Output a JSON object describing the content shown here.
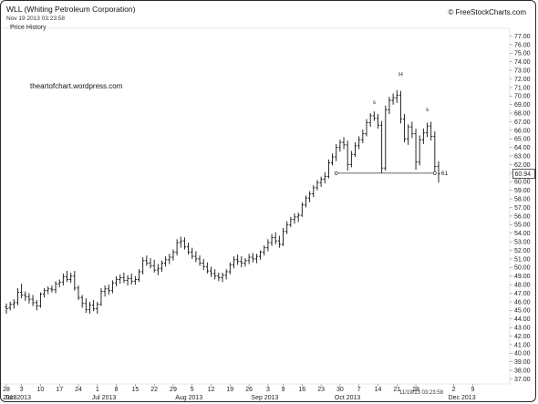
{
  "header": {
    "title": "WLL (Whiting Petroleum Corporation)",
    "date": "Nov 19 2013 03:23:58",
    "panel_label": "Price History",
    "copyright": "© FreeStockCharts.com"
  },
  "watermark": "theartofchart.wordpress.com",
  "timestamp": "11/19/13 03:23:58",
  "chart_data": {
    "type": "ohlc",
    "ylim": [
      37.0,
      77.0
    ],
    "y_ticks": [
      "77.00",
      "76.00",
      "75.00",
      "74.00",
      "73.00",
      "72.00",
      "71.00",
      "70.00",
      "69.00",
      "68.00",
      "67.00",
      "66.00",
      "65.00",
      "64.00",
      "63.00",
      "62.00",
      "61.00",
      "60.00",
      "59.00",
      "58.00",
      "57.00",
      "56.00",
      "55.00",
      "54.00",
      "53.00",
      "52.00",
      "51.00",
      "50.00",
      "49.00",
      "48.00",
      "47.00",
      "46.00",
      "45.00",
      "44.00",
      "43.00",
      "42.00",
      "41.00",
      "40.00",
      "39.00",
      "38.00",
      "37.00"
    ],
    "x_ticks": [
      "28",
      "3",
      "10",
      "17",
      "24",
      "1",
      "8",
      "15",
      "22",
      "29",
      "5",
      "12",
      "19",
      "26",
      "3",
      "9",
      "16",
      "23",
      "30",
      "7",
      "14",
      "21",
      "28",
      "2",
      "9"
    ],
    "x_tick_index": [
      0,
      4,
      9,
      14,
      19,
      24,
      29,
      34,
      39,
      44,
      49,
      54,
      59,
      64,
      69,
      73,
      78,
      83,
      88,
      93,
      98,
      103,
      108,
      118,
      123
    ],
    "month_labels": [
      "2013",
      "Jun 2013",
      "Jul 2013",
      "Aug 2013",
      "Sep 2013",
      "Oct 2013",
      "Dec 2013"
    ],
    "month_index": [
      0,
      1,
      24,
      46,
      66,
      88,
      118
    ],
    "last_price": "60.94",
    "neckline": {
      "value": 61,
      "label": "61",
      "start_index": 87,
      "end_index": 113
    },
    "pattern_labels": [
      {
        "text": "s",
        "index": 97,
        "value": 69.1
      },
      {
        "text": "H",
        "index": 104,
        "value": 72.3
      },
      {
        "text": "s",
        "index": 111,
        "value": 68.2
      }
    ],
    "bars": [
      [
        45.4,
        45.8,
        44.6,
        45.2
      ],
      [
        45.3,
        46.0,
        45.0,
        45.7
      ],
      [
        45.7,
        46.3,
        45.2,
        45.9
      ],
      [
        45.9,
        47.6,
        45.6,
        47.1
      ],
      [
        47.1,
        48.1,
        46.4,
        46.8
      ],
      [
        46.8,
        47.2,
        46.1,
        46.6
      ],
      [
        46.6,
        47.0,
        45.8,
        46.3
      ],
      [
        46.3,
        46.8,
        45.5,
        45.9
      ],
      [
        45.9,
        46.2,
        45.0,
        45.5
      ],
      [
        45.5,
        47.1,
        45.3,
        46.9
      ],
      [
        46.9,
        47.6,
        46.5,
        47.3
      ],
      [
        47.3,
        47.8,
        46.9,
        47.5
      ],
      [
        47.5,
        47.9,
        47.1,
        47.4
      ],
      [
        47.4,
        48.4,
        47.0,
        48.1
      ],
      [
        48.1,
        48.6,
        47.7,
        48.3
      ],
      [
        48.3,
        49.3,
        47.9,
        48.9
      ],
      [
        48.9,
        49.6,
        48.3,
        48.6
      ],
      [
        48.6,
        49.4,
        48.2,
        49.0
      ],
      [
        49.0,
        49.6,
        47.3,
        47.6
      ],
      [
        47.6,
        47.9,
        46.2,
        46.5
      ],
      [
        46.5,
        46.8,
        45.3,
        45.8
      ],
      [
        45.8,
        46.4,
        44.7,
        45.1
      ],
      [
        45.1,
        46.0,
        44.6,
        45.6
      ],
      [
        45.6,
        46.2,
        44.9,
        45.2
      ],
      [
        45.2,
        46.0,
        44.6,
        45.7
      ],
      [
        45.7,
        47.6,
        45.5,
        47.2
      ],
      [
        47.2,
        47.9,
        46.6,
        47.5
      ],
      [
        47.5,
        48.0,
        46.8,
        47.3
      ],
      [
        47.3,
        48.5,
        47.0,
        48.2
      ],
      [
        48.2,
        49.0,
        47.8,
        48.6
      ],
      [
        48.6,
        49.2,
        48.1,
        48.8
      ],
      [
        48.8,
        49.4,
        48.2,
        48.5
      ],
      [
        48.5,
        49.1,
        47.9,
        48.7
      ],
      [
        48.7,
        49.3,
        48.0,
        48.4
      ],
      [
        48.4,
        49.0,
        48.0,
        48.6
      ],
      [
        48.6,
        49.8,
        48.3,
        49.5
      ],
      [
        49.5,
        51.2,
        49.2,
        50.8
      ],
      [
        50.8,
        51.4,
        50.2,
        50.5
      ],
      [
        50.5,
        51.1,
        49.9,
        50.2
      ],
      [
        50.2,
        50.9,
        49.4,
        49.7
      ],
      [
        49.7,
        50.4,
        49.1,
        49.9
      ],
      [
        49.9,
        50.8,
        49.5,
        50.5
      ],
      [
        50.5,
        51.3,
        50.1,
        50.9
      ],
      [
        50.9,
        51.6,
        50.4,
        51.2
      ],
      [
        51.2,
        52.1,
        50.8,
        51.8
      ],
      [
        51.8,
        53.3,
        51.4,
        52.9
      ],
      [
        52.9,
        53.6,
        52.3,
        53.1
      ],
      [
        53.1,
        53.5,
        52.1,
        52.4
      ],
      [
        52.4,
        52.9,
        51.5,
        51.8
      ],
      [
        51.8,
        52.3,
        51.0,
        51.3
      ],
      [
        51.3,
        51.9,
        50.6,
        51.0
      ],
      [
        51.0,
        51.4,
        50.2,
        50.5
      ],
      [
        50.5,
        51.0,
        49.7,
        50.1
      ],
      [
        50.1,
        50.6,
        49.3,
        49.6
      ],
      [
        49.6,
        50.1,
        48.9,
        49.3
      ],
      [
        49.3,
        49.8,
        48.6,
        49.0
      ],
      [
        49.0,
        49.4,
        48.4,
        48.8
      ],
      [
        48.8,
        49.4,
        48.3,
        49.1
      ],
      [
        49.1,
        49.8,
        48.6,
        49.5
      ],
      [
        49.5,
        50.6,
        49.2,
        50.3
      ],
      [
        50.3,
        51.3,
        49.9,
        50.9
      ],
      [
        50.9,
        51.5,
        50.3,
        50.7
      ],
      [
        50.7,
        51.3,
        50.0,
        50.5
      ],
      [
        50.5,
        51.1,
        50.1,
        50.8
      ],
      [
        50.8,
        51.6,
        50.4,
        51.2
      ],
      [
        51.2,
        51.7,
        50.6,
        51.0
      ],
      [
        51.0,
        51.6,
        50.5,
        51.3
      ],
      [
        51.3,
        52.0,
        50.9,
        51.8
      ],
      [
        51.8,
        52.6,
        51.4,
        52.3
      ],
      [
        52.3,
        53.3,
        51.9,
        52.9
      ],
      [
        52.9,
        53.9,
        52.5,
        53.5
      ],
      [
        53.5,
        54.1,
        52.7,
        53.1
      ],
      [
        53.1,
        53.7,
        52.3,
        52.7
      ],
      [
        52.7,
        54.6,
        52.5,
        54.2
      ],
      [
        54.2,
        55.4,
        53.9,
        55.0
      ],
      [
        55.0,
        55.9,
        54.7,
        55.6
      ],
      [
        55.6,
        56.3,
        55.1,
        55.9
      ],
      [
        55.9,
        56.4,
        55.3,
        56.1
      ],
      [
        56.1,
        57.6,
        55.9,
        57.3
      ],
      [
        57.3,
        58.4,
        57.0,
        58.1
      ],
      [
        58.1,
        58.9,
        57.6,
        58.6
      ],
      [
        58.6,
        59.6,
        58.2,
        59.3
      ],
      [
        59.3,
        60.2,
        59.0,
        59.9
      ],
      [
        59.9,
        60.6,
        59.4,
        60.3
      ],
      [
        60.3,
        61.1,
        59.8,
        60.6
      ],
      [
        60.6,
        62.6,
        60.4,
        62.2
      ],
      [
        62.2,
        63.3,
        61.9,
        62.9
      ],
      [
        62.9,
        64.4,
        62.4,
        64.0
      ],
      [
        64.0,
        64.9,
        63.5,
        64.6
      ],
      [
        64.6,
        65.2,
        63.8,
        64.3
      ],
      [
        64.3,
        64.8,
        61.3,
        62.0
      ],
      [
        62.0,
        63.6,
        61.7,
        63.2
      ],
      [
        63.2,
        64.6,
        62.9,
        64.2
      ],
      [
        64.2,
        65.3,
        63.8,
        64.9
      ],
      [
        64.9,
        66.1,
        64.5,
        65.6
      ],
      [
        65.6,
        67.3,
        65.3,
        66.9
      ],
      [
        66.9,
        68.0,
        66.4,
        67.7
      ],
      [
        67.7,
        68.2,
        67.1,
        67.4
      ],
      [
        67.4,
        67.9,
        66.2,
        66.6
      ],
      [
        66.6,
        67.1,
        61.0,
        61.6
      ],
      [
        61.6,
        68.9,
        61.3,
        68.4
      ],
      [
        68.4,
        69.9,
        67.9,
        69.5
      ],
      [
        69.5,
        70.3,
        69.0,
        69.8
      ],
      [
        69.8,
        70.7,
        69.2,
        70.1
      ],
      [
        70.1,
        70.6,
        66.8,
        67.3
      ],
      [
        67.3,
        67.9,
        64.6,
        65.0
      ],
      [
        65.0,
        66.7,
        64.3,
        66.4
      ],
      [
        66.4,
        67.0,
        65.1,
        65.6
      ],
      [
        65.6,
        66.2,
        61.4,
        62.3
      ],
      [
        62.3,
        65.4,
        61.9,
        64.9
      ],
      [
        64.9,
        66.2,
        64.4,
        65.7
      ],
      [
        65.7,
        66.9,
        65.2,
        66.5
      ],
      [
        66.5,
        67.0,
        64.8,
        65.3
      ],
      [
        65.3,
        65.9,
        61.2,
        61.8
      ],
      [
        61.8,
        62.4,
        59.9,
        60.94
      ]
    ]
  }
}
